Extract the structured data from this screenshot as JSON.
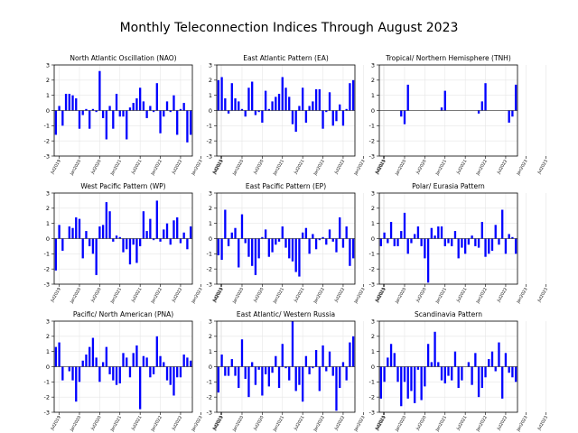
{
  "figure": {
    "title": "Monthly Teleconnection Indices Through August 2023",
    "bar_color": "#0000ff",
    "zero_line_color": "#000000",
    "grid_color": "#e6e6e6"
  },
  "chart_data": [
    {
      "type": "bar",
      "title": "North Atlantic Oscillation (NAO)",
      "xlabel": "",
      "ylabel": "",
      "ylim": [
        -3,
        3
      ],
      "yticks": [
        -3,
        -2,
        -1,
        0,
        1,
        2,
        3
      ],
      "grid": true,
      "x_tick_labels": [
        "Jul2019",
        "Jan2020",
        "Jul2020",
        "Jan2021",
        "Jul2021",
        "Jan2022",
        "Jul2022",
        "Jan2023",
        "Jul2023"
      ],
      "x_start": "2019-06",
      "values": [
        -1.6,
        0.3,
        -1.0,
        1.1,
        1.1,
        1.0,
        0.8,
        -1.2,
        -0.3,
        0.1,
        -1.2,
        0.1,
        -0.1,
        2.6,
        -0.5,
        -1.9,
        0.3,
        -1.2,
        1.1,
        -0.4,
        -0.4,
        -1.9,
        0.2,
        0.5,
        0.8,
        1.5,
        0.6,
        -0.5,
        0.3,
        -0.1,
        1.8,
        -1.5,
        -0.4,
        0.6,
        -0.1,
        1.0,
        -1.6,
        0.1,
        0.5,
        -2.1,
        -1.6
      ]
    },
    {
      "type": "bar",
      "title": "East Atlantic Pattern (EA)",
      "xlabel": "",
      "ylabel": "",
      "ylim": [
        -3,
        3
      ],
      "yticks": [
        -3,
        -2,
        -1,
        0,
        1,
        2,
        3
      ],
      "grid": true,
      "x_tick_labels": [
        "Jul2019",
        "Jan2020",
        "Jul2020",
        "Jan2021",
        "Jul2021",
        "Jan2022",
        "Jul2022",
        "Jan2023",
        "Jul2023"
      ],
      "x_start": "2019-06",
      "values": [
        2.0,
        2.2,
        0.8,
        -0.2,
        1.8,
        0.8,
        0.6,
        0.1,
        -0.4,
        1.5,
        1.9,
        -0.3,
        -0.1,
        -0.8,
        1.3,
        0.1,
        0.6,
        0.9,
        1.1,
        2.2,
        1.5,
        0.9,
        -0.9,
        -1.4,
        0.3,
        1.5,
        -0.8,
        0.3,
        0.6,
        1.4,
        1.4,
        -1.2,
        -0.1,
        1.2,
        -1.0,
        -0.7,
        0.4,
        -1.0,
        0.1,
        1.8,
        2.0
      ]
    },
    {
      "type": "bar",
      "title": "Tropical/ Northern Hemisphere (TNH)",
      "xlabel": "",
      "ylabel": "",
      "ylim": [
        -3,
        3
      ],
      "yticks": [
        -3,
        -2,
        -1,
        0,
        1,
        2,
        3
      ],
      "grid": true,
      "x_tick_labels": [
        "Jul2019",
        "Jan2020",
        "Jul2020",
        "Jan2021",
        "Jul2021",
        "Jan2022",
        "Jul2022",
        "Jan2023",
        "Jul2023"
      ],
      "x_start": "2019-06",
      "values": [
        0,
        0,
        0,
        0,
        0,
        0,
        -0.4,
        -0.9,
        1.7,
        0,
        0,
        0,
        0,
        0,
        0,
        0,
        0,
        0,
        0.2,
        1.3,
        0,
        0,
        0,
        0,
        0,
        0,
        0,
        0,
        0,
        -0.2,
        0.6,
        1.8,
        0,
        0,
        0,
        0,
        0,
        0,
        -0.8,
        -0.4,
        1.7
      ]
    },
    {
      "type": "bar",
      "title": "West Pacific Pattern (WP)",
      "xlabel": "",
      "ylabel": "",
      "ylim": [
        -3,
        3
      ],
      "yticks": [
        -3,
        -2,
        -1,
        0,
        1,
        2,
        3
      ],
      "grid": true,
      "x_tick_labels": [
        "Jul2019",
        "Jan2020",
        "Jul2020",
        "Jan2021",
        "Jul2021",
        "Jan2022",
        "Jul2022",
        "Jan2023",
        "Jul2023"
      ],
      "x_start": "2019-06",
      "values": [
        -2.1,
        0.9,
        -0.8,
        0.0,
        0.8,
        0.7,
        1.4,
        1.3,
        -1.3,
        0.5,
        -0.5,
        -1.0,
        -2.4,
        0.8,
        0.9,
        2.4,
        1.8,
        -0.2,
        0.2,
        0.1,
        -0.9,
        -0.7,
        -1.7,
        -0.4,
        -1.6,
        -0.5,
        1.8,
        0.5,
        1.3,
        -0.1,
        2.5,
        -0.2,
        0.6,
        1.0,
        -0.4,
        1.2,
        1.4,
        -0.3,
        0.4,
        -0.7,
        0.8
      ]
    },
    {
      "type": "bar",
      "title": "East Pacific Pattern (EP)",
      "xlabel": "",
      "ylabel": "",
      "ylim": [
        -3,
        3
      ],
      "yticks": [
        -3,
        -2,
        -1,
        0,
        1,
        2,
        3
      ],
      "grid": true,
      "x_tick_labels": [
        "Jul2019",
        "Jan2020",
        "Jul2020",
        "Jan2021",
        "Jul2021",
        "Jan2022",
        "Jul2022",
        "Jan2023",
        "Jul2023"
      ],
      "x_start": "2019-06",
      "values": [
        -1.1,
        -1.4,
        1.9,
        -0.5,
        0.4,
        0.7,
        -1.9,
        1.6,
        -0.3,
        -1.2,
        -1.8,
        -2.4,
        -1.3,
        0.1,
        0.6,
        -1.2,
        -0.9,
        -0.4,
        -0.2,
        0.8,
        -0.6,
        -1.3,
        -1.5,
        -2.2,
        -2.5,
        0.4,
        0.7,
        -1.0,
        0.3,
        -0.7,
        -0.1,
        0.1,
        -0.4,
        0.6,
        -0.2,
        -0.9,
        1.4,
        -0.6,
        0.8,
        -1.8,
        -1.3
      ]
    },
    {
      "type": "bar",
      "title": "Polar/ Eurasia Pattern",
      "xlabel": "",
      "ylabel": "",
      "ylim": [
        -3,
        3
      ],
      "yticks": [
        -3,
        -2,
        -1,
        0,
        1,
        2,
        3
      ],
      "grid": true,
      "x_tick_labels": [
        "Jul2019",
        "Jan2020",
        "Jul2020",
        "Jan2021",
        "Jul2021",
        "Jan2022",
        "Jul2022",
        "Jan2023",
        "Jul2023"
      ],
      "x_start": "2019-06",
      "values": [
        -0.5,
        0.4,
        -0.3,
        1.1,
        -0.5,
        -0.5,
        0.5,
        1.7,
        -1.0,
        -0.3,
        0.3,
        0.8,
        -0.5,
        -1.3,
        -2.9,
        0.7,
        0.2,
        0.8,
        0.8,
        -0.5,
        -0.3,
        -0.5,
        0.5,
        -1.3,
        -0.6,
        -1.0,
        -0.4,
        0.2,
        -0.5,
        -0.6,
        1.1,
        -1.2,
        -1.0,
        -0.8,
        0.9,
        -0.4,
        1.9,
        -1.0,
        0.3,
        0.1,
        -1.0
      ]
    },
    {
      "type": "bar",
      "title": "Pacific/ North American (PNA)",
      "xlabel": "",
      "ylabel": "",
      "ylim": [
        -3,
        3
      ],
      "yticks": [
        -3,
        -2,
        -1,
        0,
        1,
        2,
        3
      ],
      "grid": true,
      "x_tick_labels": [
        "Jul2019",
        "Jan2020",
        "Jul2020",
        "Jan2021",
        "Jul2021",
        "Jan2022",
        "Jul2022",
        "Jan2023",
        "Jul2023"
      ],
      "x_start": "2019-06",
      "values": [
        1.3,
        1.6,
        -0.9,
        0.0,
        -0.3,
        -0.9,
        -2.3,
        -1.0,
        0.4,
        0.8,
        1.3,
        1.9,
        0.6,
        -1.0,
        0.3,
        1.3,
        -0.5,
        -0.9,
        -1.2,
        -1.1,
        0.9,
        0.6,
        -0.7,
        0.9,
        1.4,
        -2.8,
        0.7,
        0.6,
        -0.7,
        -0.5,
        2.0,
        0.7,
        0.3,
        -0.9,
        -1.2,
        -1.9,
        -0.7,
        -0.7,
        0.8,
        0.6,
        0.4
      ]
    },
    {
      "type": "bar",
      "title": "East Atlantic/ Western Russia",
      "xlabel": "",
      "ylabel": "",
      "ylim": [
        -3,
        3
      ],
      "yticks": [
        -3,
        -2,
        -1,
        0,
        1,
        2,
        3
      ],
      "grid": true,
      "x_tick_labels": [
        "Jul2019",
        "Jan2020",
        "Jul2020",
        "Jan2021",
        "Jul2021",
        "Jan2022",
        "Jul2022",
        "Jan2023",
        "Jul2023"
      ],
      "x_start": "2019-06",
      "values": [
        -1.7,
        0.8,
        -0.6,
        -0.6,
        0.5,
        -0.6,
        -1.4,
        1.8,
        -0.8,
        -2.0,
        0.3,
        -1.2,
        -0.2,
        -1.9,
        -0.5,
        -1.3,
        -0.4,
        0.7,
        -1.4,
        1.5,
        -0.1,
        -0.9,
        3.0,
        -1.6,
        -1.2,
        -2.3,
        0.7,
        -0.5,
        -0.1,
        1.1,
        -1.6,
        1.4,
        -0.3,
        1.0,
        -0.6,
        -2.9,
        -1.4,
        0.3,
        -0.9,
        1.6,
        2.0
      ]
    },
    {
      "type": "bar",
      "title": "Scandinavia Pattern",
      "xlabel": "",
      "ylabel": "",
      "ylim": [
        -3,
        3
      ],
      "yticks": [
        -3,
        -2,
        -1,
        0,
        1,
        2,
        3
      ],
      "grid": true,
      "x_tick_labels": [
        "Jul2019",
        "Jan2020",
        "Jul2020",
        "Jan2021",
        "Jul2021",
        "Jan2022",
        "Jul2022",
        "Jan2023",
        "Jul2023"
      ],
      "x_start": "2019-06",
      "values": [
        -2.1,
        -1.0,
        0.6,
        1.5,
        0.9,
        -1.0,
        -2.6,
        -1.0,
        -2.1,
        -1.6,
        -2.4,
        -0.2,
        -2.2,
        -1.3,
        1.5,
        0.3,
        2.3,
        0.3,
        -0.9,
        -1.1,
        -0.6,
        -0.9,
        1.0,
        -1.4,
        -0.9,
        0.0,
        0.3,
        -1.2,
        0.9,
        -2.0,
        -1.4,
        -0.7,
        0.5,
        1.0,
        -0.3,
        1.6,
        -2.1,
        0.9,
        -0.4,
        -0.7,
        -1.0
      ]
    }
  ]
}
